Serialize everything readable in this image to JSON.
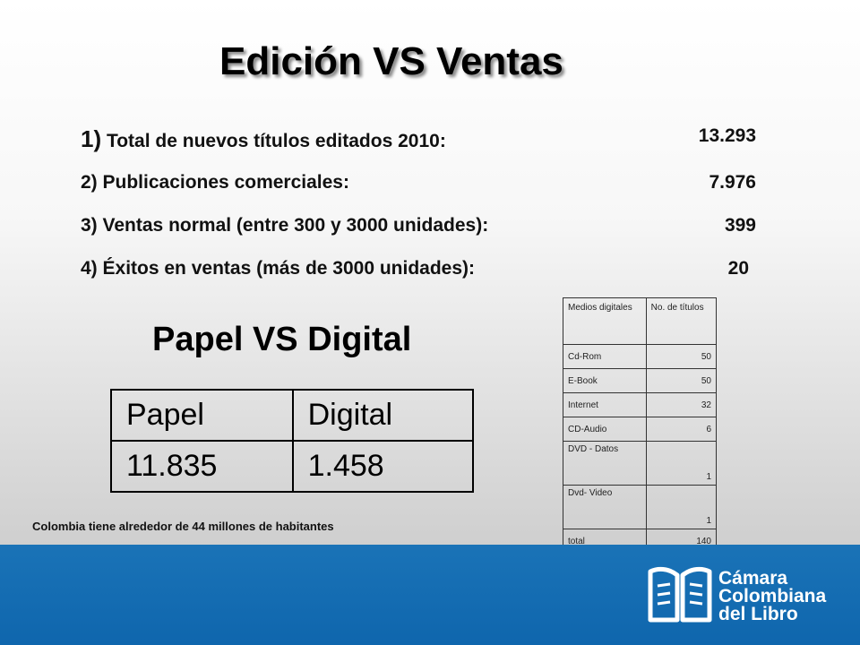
{
  "title": "Edición VS Ventas",
  "stats": [
    {
      "num": "1)",
      "label": " Total de nuevos títulos editados 2010:",
      "value": "13.293"
    },
    {
      "num": "2)",
      "label": " Publicaciones comerciales:",
      "value": "7.976"
    },
    {
      "num": "3)",
      "label": " Ventas normal (entre 300 y 3000 unidades):",
      "value": "399"
    },
    {
      "num": "4)",
      "label": " Éxitos en ventas (más de 3000 unidades):",
      "value": "20"
    }
  ],
  "papel_digital": {
    "title": "Papel VS Digital",
    "headers": [
      "Papel",
      "Digital"
    ],
    "values": [
      "11.835",
      "1.458"
    ]
  },
  "note": "Colombia tiene alrededor de 44 millones de habitantes",
  "medios": {
    "headers": [
      "Medios digitales",
      "No. de títulos"
    ],
    "rows": [
      {
        "name": "Cd-Rom",
        "count": "50"
      },
      {
        "name": "E-Book",
        "count": "50"
      },
      {
        "name": "Internet",
        "count": "32"
      },
      {
        "name": "CD-Audio",
        "count": "6"
      },
      {
        "name": "DVD - Datos",
        "count": "1"
      },
      {
        "name": "Dvd- Video",
        "count": "1"
      },
      {
        "name": "total",
        "count": "140"
      }
    ]
  },
  "logo": {
    "icon": "open-book-icon",
    "lines": [
      "Cámara",
      "Colombiana",
      "del Libro"
    ],
    "colors": {
      "footer": "#1470b5",
      "text": "#ffffff"
    }
  }
}
